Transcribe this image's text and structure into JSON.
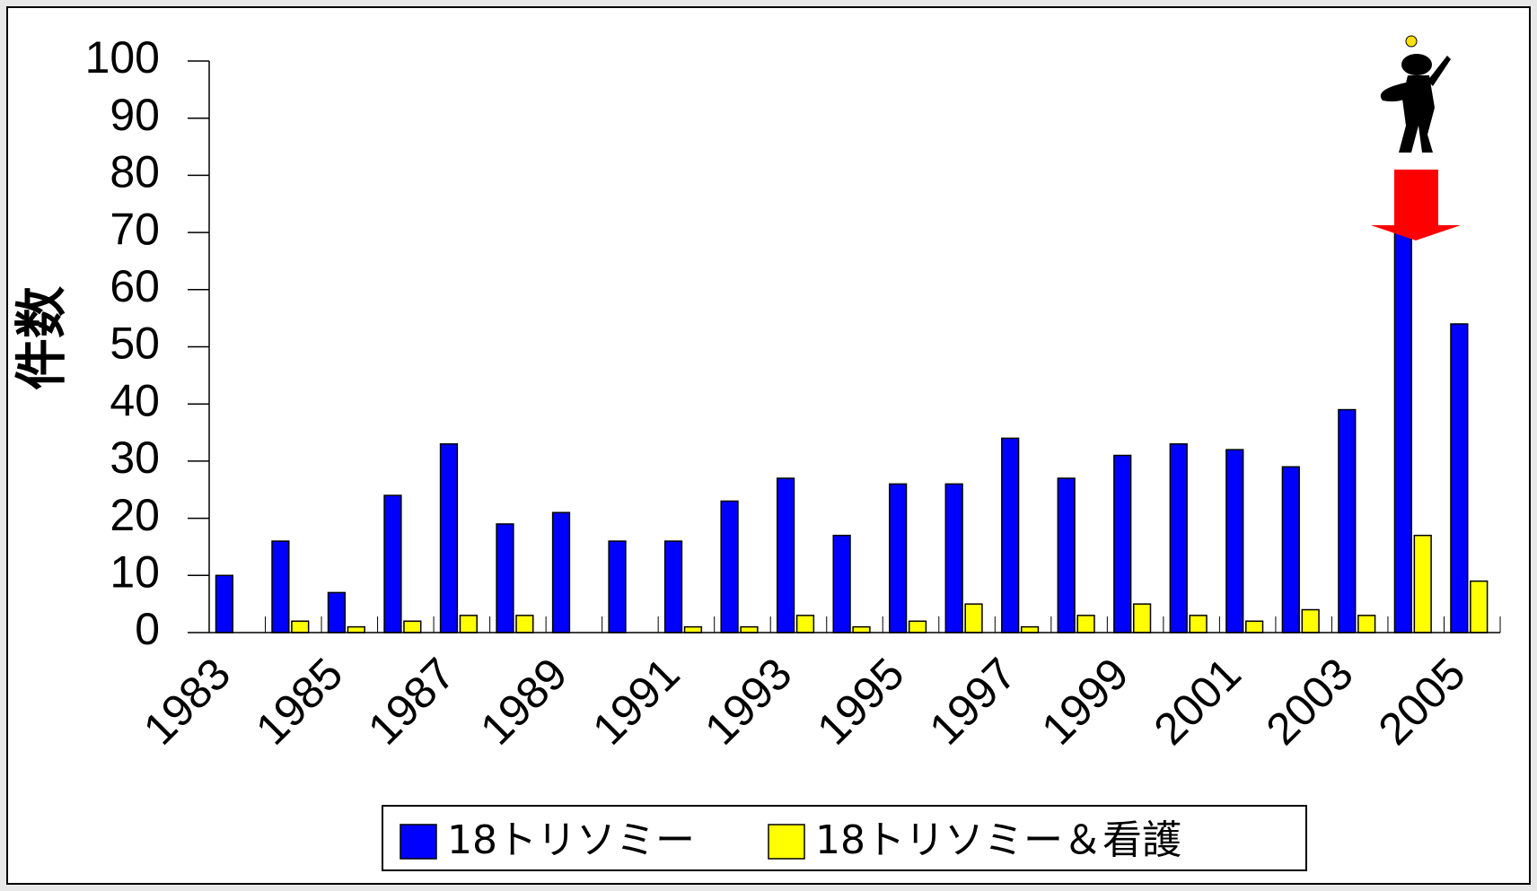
{
  "chart_data": {
    "type": "bar",
    "y_label": "件数",
    "categories": [
      "1983",
      null,
      "1985",
      null,
      "1987",
      null,
      "1989",
      null,
      "1991",
      null,
      "1993",
      null,
      "1995",
      null,
      "1997",
      null,
      "1999",
      null,
      "2001",
      null,
      "2003",
      null,
      "2005"
    ],
    "series": [
      {
        "name": "18トリソミー",
        "color": "#0000ff",
        "values": [
          10,
          16,
          7,
          24,
          33,
          19,
          21,
          16,
          16,
          23,
          27,
          17,
          26,
          26,
          34,
          27,
          31,
          33,
          32,
          29,
          39,
          70,
          54
        ]
      },
      {
        "name": "18トリソミー＆看護",
        "color": "#ffff00",
        "values": [
          0,
          2,
          1,
          2,
          3,
          3,
          0,
          0,
          1,
          1,
          3,
          1,
          2,
          5,
          1,
          3,
          5,
          3,
          2,
          4,
          3,
          17,
          9
        ]
      }
    ],
    "ylim": [
      0,
      100
    ],
    "yticks": [
      0,
      10,
      20,
      30,
      40,
      50,
      60,
      70,
      80,
      90,
      100
    ],
    "grid": false
  }
}
